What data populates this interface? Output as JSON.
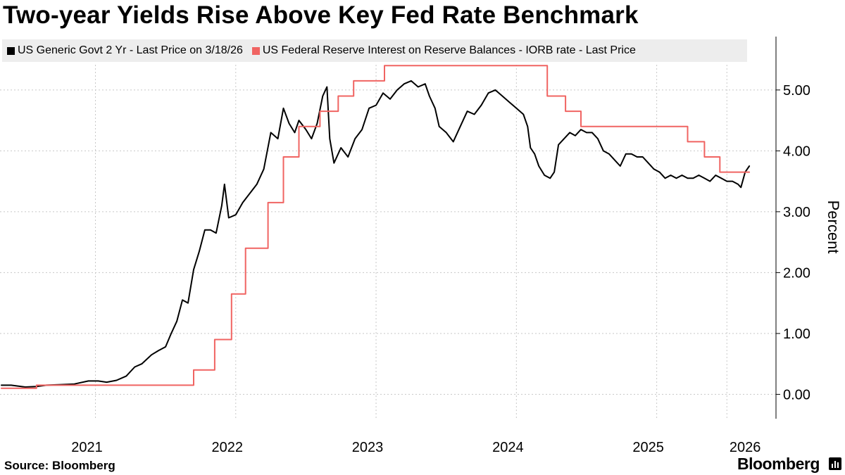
{
  "title": "Two-year Yields Rise Above Key Fed Rate Benchmark",
  "source": "Source: Bloomberg",
  "brand": "Bloomberg",
  "chart_data": {
    "type": "line",
    "title": "Two-year Yields Rise Above Key Fed Rate Benchmark",
    "xlabel": "",
    "ylabel": "Percent",
    "xlim": [
      2020.82,
      2026.35
    ],
    "ylim": [
      -0.4,
      5.9
    ],
    "yticks": [
      0,
      1,
      2,
      3,
      4,
      5
    ],
    "ytick_labels": [
      "0.00",
      "1.00",
      "2.00",
      "3.00",
      "4.00",
      "5.00"
    ],
    "xticks": [
      2021,
      2022,
      2023,
      2024,
      2025,
      2026
    ],
    "xtick_labels": [
      "2021",
      "2022",
      "2023",
      "2024",
      "2025",
      "2026"
    ],
    "xgridlines": [
      2021.5,
      2022.5,
      2023.5,
      2024.5,
      2025.5,
      2026.0
    ],
    "grid": true,
    "legend_position": "top",
    "series": [
      {
        "name": "US Generic Govt 2 Yr - Last Price on 3/18/26",
        "color": "#000000",
        "kind": "line",
        "points": [
          [
            2020.83,
            0.15
          ],
          [
            2020.9,
            0.15
          ],
          [
            2021.0,
            0.12
          ],
          [
            2021.08,
            0.13
          ],
          [
            2021.15,
            0.15
          ],
          [
            2021.25,
            0.16
          ],
          [
            2021.35,
            0.17
          ],
          [
            2021.45,
            0.22
          ],
          [
            2021.52,
            0.22
          ],
          [
            2021.58,
            0.2
          ],
          [
            2021.65,
            0.23
          ],
          [
            2021.72,
            0.3
          ],
          [
            2021.78,
            0.45
          ],
          [
            2021.83,
            0.5
          ],
          [
            2021.9,
            0.65
          ],
          [
            2021.95,
            0.72
          ],
          [
            2022.0,
            0.78
          ],
          [
            2022.04,
            1.0
          ],
          [
            2022.08,
            1.2
          ],
          [
            2022.12,
            1.55
          ],
          [
            2022.16,
            1.5
          ],
          [
            2022.2,
            2.05
          ],
          [
            2022.24,
            2.35
          ],
          [
            2022.28,
            2.7
          ],
          [
            2022.32,
            2.7
          ],
          [
            2022.36,
            2.65
          ],
          [
            2022.4,
            3.1
          ],
          [
            2022.42,
            3.45
          ],
          [
            2022.45,
            2.9
          ],
          [
            2022.5,
            2.95
          ],
          [
            2022.55,
            3.15
          ],
          [
            2022.6,
            3.3
          ],
          [
            2022.65,
            3.45
          ],
          [
            2022.7,
            3.7
          ],
          [
            2022.75,
            4.3
          ],
          [
            2022.8,
            4.2
          ],
          [
            2022.84,
            4.7
          ],
          [
            2022.88,
            4.45
          ],
          [
            2022.92,
            4.3
          ],
          [
            2022.95,
            4.5
          ],
          [
            2023.0,
            4.35
          ],
          [
            2023.04,
            4.2
          ],
          [
            2023.08,
            4.45
          ],
          [
            2023.12,
            4.9
          ],
          [
            2023.15,
            5.05
          ],
          [
            2023.17,
            4.2
          ],
          [
            2023.2,
            3.8
          ],
          [
            2023.25,
            4.05
          ],
          [
            2023.3,
            3.9
          ],
          [
            2023.35,
            4.2
          ],
          [
            2023.4,
            4.35
          ],
          [
            2023.45,
            4.7
          ],
          [
            2023.5,
            4.75
          ],
          [
            2023.55,
            4.95
          ],
          [
            2023.6,
            4.85
          ],
          [
            2023.65,
            5.0
          ],
          [
            2023.7,
            5.1
          ],
          [
            2023.75,
            5.15
          ],
          [
            2023.8,
            5.05
          ],
          [
            2023.85,
            5.1
          ],
          [
            2023.88,
            4.9
          ],
          [
            2023.92,
            4.7
          ],
          [
            2023.95,
            4.4
          ],
          [
            2024.0,
            4.3
          ],
          [
            2024.05,
            4.15
          ],
          [
            2024.1,
            4.4
          ],
          [
            2024.15,
            4.65
          ],
          [
            2024.2,
            4.6
          ],
          [
            2024.25,
            4.75
          ],
          [
            2024.3,
            4.95
          ],
          [
            2024.35,
            5.0
          ],
          [
            2024.4,
            4.9
          ],
          [
            2024.45,
            4.8
          ],
          [
            2024.5,
            4.7
          ],
          [
            2024.55,
            4.6
          ],
          [
            2024.58,
            4.4
          ],
          [
            2024.6,
            4.05
          ],
          [
            2024.63,
            3.95
          ],
          [
            2024.66,
            3.75
          ],
          [
            2024.7,
            3.6
          ],
          [
            2024.74,
            3.55
          ],
          [
            2024.77,
            3.65
          ],
          [
            2024.8,
            4.1
          ],
          [
            2024.84,
            4.2
          ],
          [
            2024.88,
            4.3
          ],
          [
            2024.92,
            4.25
          ],
          [
            2024.96,
            4.35
          ],
          [
            2025.0,
            4.3
          ],
          [
            2025.04,
            4.3
          ],
          [
            2025.08,
            4.2
          ],
          [
            2025.12,
            4.0
          ],
          [
            2025.16,
            3.95
          ],
          [
            2025.2,
            3.85
          ],
          [
            2025.24,
            3.75
          ],
          [
            2025.28,
            3.95
          ],
          [
            2025.32,
            3.95
          ],
          [
            2025.36,
            3.9
          ],
          [
            2025.4,
            3.9
          ],
          [
            2025.44,
            3.8
          ],
          [
            2025.48,
            3.7
          ],
          [
            2025.52,
            3.65
          ],
          [
            2025.56,
            3.55
          ],
          [
            2025.6,
            3.6
          ],
          [
            2025.64,
            3.55
          ],
          [
            2025.68,
            3.6
          ],
          [
            2025.72,
            3.55
          ],
          [
            2025.76,
            3.55
          ],
          [
            2025.8,
            3.6
          ],
          [
            2025.84,
            3.55
          ],
          [
            2025.88,
            3.5
          ],
          [
            2025.92,
            3.6
          ],
          [
            2025.96,
            3.55
          ],
          [
            2026.0,
            3.5
          ],
          [
            2026.04,
            3.5
          ],
          [
            2026.08,
            3.45
          ],
          [
            2026.1,
            3.4
          ],
          [
            2026.13,
            3.65
          ],
          [
            2026.16,
            3.75
          ]
        ]
      },
      {
        "name": "US Federal Reserve Interest on Reserve Balances - IORB rate - Last Price",
        "color": "#f06462",
        "kind": "step",
        "points": [
          [
            2020.83,
            0.1
          ],
          [
            2021.08,
            0.1
          ],
          [
            2021.08,
            0.15
          ],
          [
            2022.2,
            0.15
          ],
          [
            2022.2,
            0.4
          ],
          [
            2022.35,
            0.4
          ],
          [
            2022.35,
            0.9
          ],
          [
            2022.47,
            0.9
          ],
          [
            2022.47,
            1.65
          ],
          [
            2022.57,
            1.65
          ],
          [
            2022.57,
            2.4
          ],
          [
            2022.73,
            2.4
          ],
          [
            2022.73,
            3.15
          ],
          [
            2022.84,
            3.15
          ],
          [
            2022.84,
            3.9
          ],
          [
            2022.95,
            3.9
          ],
          [
            2022.95,
            4.4
          ],
          [
            2023.1,
            4.4
          ],
          [
            2023.1,
            4.65
          ],
          [
            2023.23,
            4.65
          ],
          [
            2023.23,
            4.9
          ],
          [
            2023.34,
            4.9
          ],
          [
            2023.34,
            5.15
          ],
          [
            2023.56,
            5.15
          ],
          [
            2023.56,
            5.4
          ],
          [
            2024.72,
            5.4
          ],
          [
            2024.72,
            4.9
          ],
          [
            2024.85,
            4.9
          ],
          [
            2024.85,
            4.65
          ],
          [
            2024.96,
            4.65
          ],
          [
            2024.96,
            4.4
          ],
          [
            2025.72,
            4.4
          ],
          [
            2025.72,
            4.15
          ],
          [
            2025.84,
            4.15
          ],
          [
            2025.84,
            3.9
          ],
          [
            2025.95,
            3.9
          ],
          [
            2025.95,
            3.65
          ],
          [
            2026.16,
            3.65
          ]
        ]
      }
    ]
  }
}
